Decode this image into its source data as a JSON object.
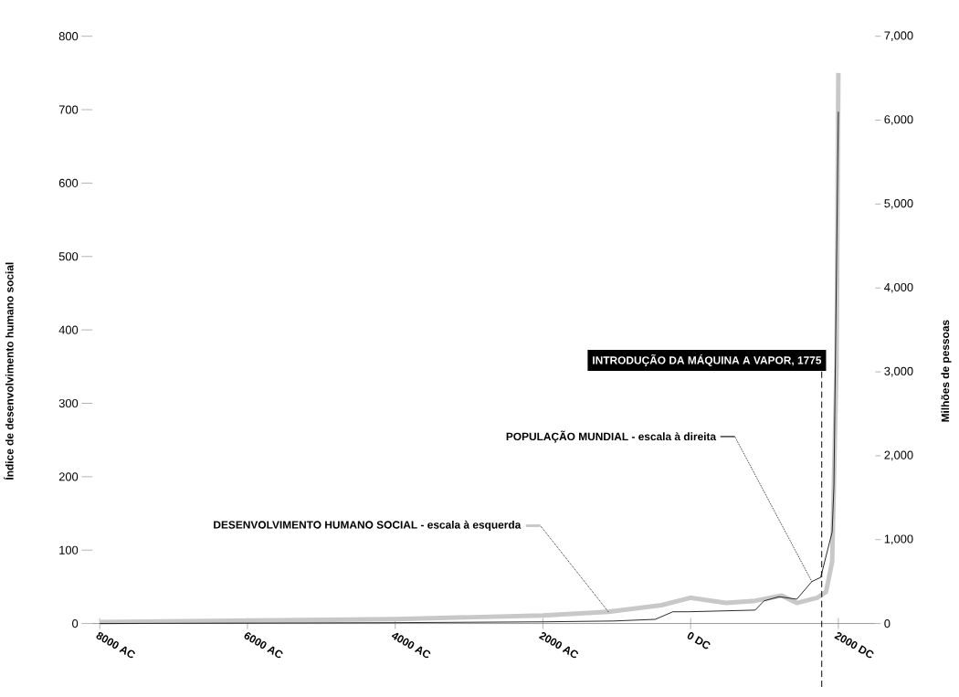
{
  "chart_data": {
    "type": "line",
    "ylabel": "Índice de desenvolvimento humano social",
    "y2label": "Milhões de pessoas",
    "xlim": [
      -8100,
      2500
    ],
    "ylim": [
      0,
      800
    ],
    "y2lim": [
      0,
      7000
    ],
    "xticks": [
      {
        "value": -8000,
        "label": "8000 AC"
      },
      {
        "value": -6000,
        "label": "6000 AC"
      },
      {
        "value": -4000,
        "label": "4000 AC"
      },
      {
        "value": -2000,
        "label": "2000 AC"
      },
      {
        "value": 0,
        "label": "0 DC"
      },
      {
        "value": 2000,
        "label": "2000 DC"
      }
    ],
    "yticks": [
      0,
      100,
      200,
      300,
      400,
      500,
      600,
      700,
      800
    ],
    "y2ticks": [
      0,
      {
        "value": 1000,
        "label": "1,000"
      },
      {
        "value": 2000,
        "label": "2,000"
      },
      {
        "value": 3000,
        "label": "3,000"
      },
      {
        "value": 4000,
        "label": "4,000"
      },
      {
        "value": 5000,
        "label": "5,000"
      },
      {
        "value": 6000,
        "label": "6,000"
      },
      {
        "value": 7000,
        "label": "7,000"
      }
    ],
    "series": [
      {
        "name": "DESENVOLVIMENTO HUMANO SOCIAL - escala à esquerda",
        "color": "#c8c8c8",
        "x": [
          -8000,
          -4000,
          -2000,
          -1114,
          -395,
          0,
          479,
          874,
          1234,
          1437,
          1713,
          1833,
          1916,
          1976,
          2000
        ],
        "values": [
          2,
          6,
          11,
          16,
          25,
          35,
          28,
          31,
          38,
          28,
          35,
          43,
          84,
          355,
          750
        ]
      },
      {
        "name": "POPULAÇÃO MUNDIAL - escala à direita",
        "color": "#111111",
        "axis": "y2",
        "x": [
          -8000,
          -4000,
          -2000,
          -1042,
          -479,
          -240,
          -36,
          874,
          994,
          1198,
          1437,
          1641,
          1761,
          1916,
          1940,
          2000
        ],
        "values": [
          0,
          10,
          20,
          30,
          50,
          140,
          140,
          160,
          270,
          320,
          290,
          500,
          550,
          1090,
          1640,
          6100
        ]
      }
    ],
    "ref_lines": [
      {
        "axis": "x",
        "value": 1775,
        "label": "INTRODUÇÃO DA MÁQUINA A VAPOR, 1775",
        "color": "#000000",
        "line_style": "dashed"
      }
    ],
    "legend": "left",
    "marker": "none"
  }
}
